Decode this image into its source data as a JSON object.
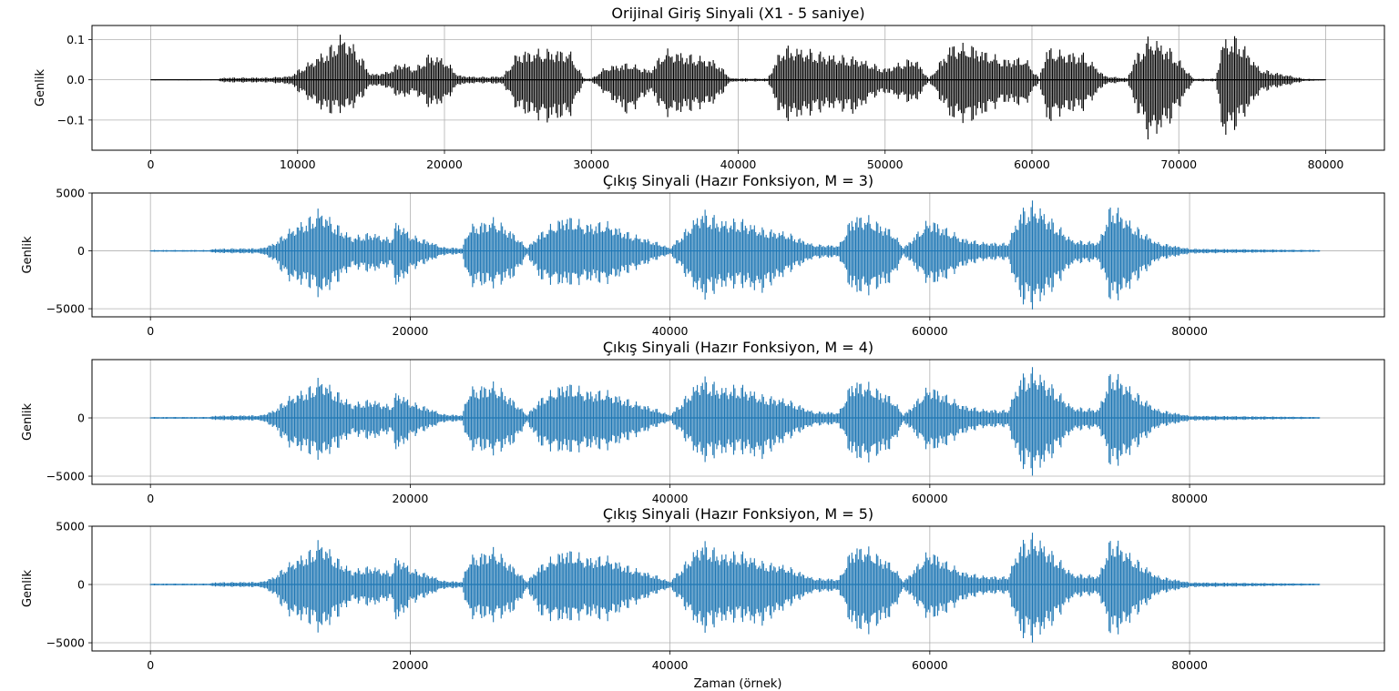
{
  "figure": {
    "xlabel": "Zaman (örnek)"
  },
  "chart_data": [
    {
      "type": "line",
      "title": "Orijinal Giriş Sinyali (X1 - 5 saniye)",
      "ylabel": "Genlik",
      "xlabel": "",
      "color": "#000000",
      "xlim": [
        -4000,
        84000
      ],
      "ylim": [
        -0.175,
        0.135
      ],
      "xticks": [
        0,
        10000,
        20000,
        30000,
        40000,
        50000,
        60000,
        70000,
        80000
      ],
      "xtick_labels": [
        "0",
        "10000",
        "20000",
        "30000",
        "40000",
        "50000",
        "60000",
        "70000",
        "80000"
      ],
      "yticks": [
        0.1,
        0.0,
        -0.1
      ],
      "ytick_labels": [
        "0.1",
        "0.0",
        "−0.1"
      ],
      "grid": true,
      "envelope": {
        "x": [
          0,
          4500,
          5000,
          8000,
          9500,
          10000,
          12000,
          13000,
          14000,
          15000,
          16000,
          17000,
          18000,
          19000,
          20000,
          21000,
          22000,
          23000,
          24000,
          25000,
          27000,
          28500,
          29500,
          30000,
          31000,
          32500,
          34000,
          35000,
          37000,
          38500,
          39500,
          42000,
          43000,
          45000,
          46500,
          48000,
          49000,
          50000,
          52000,
          53000,
          54500,
          56000,
          58000,
          59500,
          60500,
          61000,
          62000,
          63500,
          65000,
          66500,
          67000,
          68000,
          69500,
          71000,
          72500,
          73000,
          74000,
          75500,
          76500,
          77500,
          78500,
          80000
        ],
        "pos": [
          0.001,
          0.001,
          0.006,
          0.006,
          0.01,
          0.025,
          0.08,
          0.12,
          0.085,
          0.015,
          0.02,
          0.048,
          0.03,
          0.07,
          0.055,
          0.012,
          0.008,
          0.008,
          0.01,
          0.075,
          0.08,
          0.078,
          0.004,
          0.003,
          0.035,
          0.045,
          0.025,
          0.08,
          0.065,
          0.05,
          0.004,
          0.003,
          0.09,
          0.078,
          0.065,
          0.06,
          0.045,
          0.03,
          0.06,
          0.003,
          0.095,
          0.09,
          0.055,
          0.06,
          0.004,
          0.085,
          0.075,
          0.07,
          0.01,
          0.004,
          0.06,
          0.115,
          0.08,
          0.003,
          0.003,
          0.105,
          0.115,
          0.03,
          0.02,
          0.012,
          0.003,
          0.001
        ],
        "neg": [
          -0.001,
          -0.001,
          -0.007,
          -0.007,
          -0.012,
          -0.03,
          -0.09,
          -0.085,
          -0.07,
          -0.015,
          -0.02,
          -0.05,
          -0.035,
          -0.075,
          -0.06,
          -0.013,
          -0.009,
          -0.009,
          -0.012,
          -0.085,
          -0.11,
          -0.1,
          -0.005,
          -0.004,
          -0.04,
          -0.095,
          -0.03,
          -0.095,
          -0.08,
          -0.06,
          -0.005,
          -0.004,
          -0.11,
          -0.09,
          -0.075,
          -0.09,
          -0.05,
          -0.035,
          -0.065,
          -0.004,
          -0.105,
          -0.11,
          -0.06,
          -0.07,
          -0.005,
          -0.115,
          -0.09,
          -0.08,
          -0.012,
          -0.005,
          -0.07,
          -0.16,
          -0.11,
          -0.004,
          -0.004,
          -0.15,
          -0.125,
          -0.035,
          -0.022,
          -0.014,
          -0.004,
          -0.001
        ]
      }
    },
    {
      "type": "line",
      "title": "Çıkış Sinyali (Hazır Fonksiyon, M = 3)",
      "ylabel": "Genlik",
      "xlabel": "",
      "color": "#1f77b4",
      "xlim": [
        -4500,
        95000
      ],
      "ylim": [
        -5700,
        5000
      ],
      "xticks": [
        0,
        20000,
        40000,
        60000,
        80000
      ],
      "xtick_labels": [
        "0",
        "20000",
        "40000",
        "60000",
        "80000"
      ],
      "yticks": [
        5000,
        0,
        -5000
      ],
      "ytick_labels": [
        "5000",
        "0",
        "−5000"
      ],
      "grid": true,
      "envelope": {
        "x": [
          0,
          4500,
          5000,
          8500,
          9500,
          10500,
          12500,
          13000,
          14500,
          15500,
          17000,
          18500,
          19000,
          20000,
          21500,
          22500,
          24000,
          24500,
          26500,
          28000,
          29000,
          30000,
          32000,
          33500,
          35000,
          37000,
          39000,
          40000,
          42500,
          44000,
          45500,
          47000,
          49000,
          51000,
          53000,
          54000,
          55000,
          57000,
          58000,
          60000,
          61000,
          62500,
          64000,
          66000,
          67000,
          68000,
          69500,
          71000,
          73000,
          74000,
          75500,
          77500,
          80000,
          90000
        ],
        "pos": [
          80,
          80,
          200,
          250,
          700,
          1800,
          3300,
          3900,
          2300,
          1300,
          1700,
          1100,
          2900,
          1500,
          900,
          350,
          250,
          2300,
          3000,
          1600,
          300,
          1700,
          3300,
          2500,
          2700,
          1600,
          800,
          250,
          3800,
          2800,
          2900,
          2100,
          1700,
          600,
          500,
          3200,
          3300,
          2000,
          300,
          3000,
          2300,
          1200,
          800,
          700,
          3800,
          4500,
          2800,
          1000,
          800,
          4500,
          2600,
          800,
          200,
          80
        ],
        "neg": [
          -80,
          -80,
          -200,
          -250,
          -900,
          -2600,
          -3500,
          -4300,
          -2800,
          -1500,
          -2000,
          -1300,
          -3500,
          -1800,
          -1000,
          -400,
          -300,
          -3200,
          -3300,
          -2500,
          -400,
          -2700,
          -3300,
          -2800,
          -3000,
          -1900,
          -800,
          -300,
          -4500,
          -3400,
          -3300,
          -3800,
          -2100,
          -700,
          -600,
          -3900,
          -4000,
          -3000,
          -400,
          -3200,
          -2800,
          -1500,
          -900,
          -800,
          -4800,
          -5200,
          -3600,
          -1200,
          -900,
          -5000,
          -3300,
          -900,
          -250,
          -80
        ]
      }
    },
    {
      "type": "line",
      "title": "Çıkış Sinyali (Hazır Fonksiyon, M = 4)",
      "ylabel": "Genlik",
      "xlabel": "",
      "color": "#1f77b4",
      "xlim": [
        -4500,
        95000
      ],
      "ylim": [
        -5700,
        5000
      ],
      "xticks": [
        0,
        20000,
        40000,
        60000,
        80000
      ],
      "xtick_labels": [
        "0",
        "20000",
        "40000",
        "60000",
        "80000"
      ],
      "yticks": [
        0,
        -5000
      ],
      "ytick_labels": [
        "0",
        "−5000"
      ],
      "grid": true,
      "envelope": {
        "x": [
          0,
          4500,
          5000,
          8500,
          9500,
          10500,
          12500,
          13000,
          14500,
          15500,
          17000,
          18500,
          19000,
          20000,
          21500,
          22500,
          24000,
          24500,
          26500,
          28000,
          29000,
          30000,
          32000,
          33500,
          35000,
          37000,
          39000,
          40000,
          42500,
          44000,
          45500,
          47000,
          49000,
          51000,
          53000,
          54000,
          55000,
          57000,
          58000,
          60000,
          61000,
          62500,
          64000,
          66000,
          67000,
          68000,
          69500,
          71000,
          73000,
          74000,
          75500,
          77500,
          80000,
          90000
        ],
        "pos": [
          80,
          80,
          200,
          250,
          700,
          1800,
          3000,
          3700,
          2300,
          1300,
          1700,
          1100,
          2500,
          1500,
          900,
          350,
          250,
          2700,
          3200,
          1600,
          300,
          1800,
          3300,
          2500,
          2500,
          1600,
          800,
          250,
          3800,
          2800,
          3000,
          2100,
          1700,
          600,
          500,
          3400,
          3300,
          2000,
          300,
          3000,
          2300,
          1200,
          800,
          700,
          3900,
          4500,
          2900,
          1000,
          800,
          4500,
          2700,
          800,
          200,
          80
        ],
        "neg": [
          -80,
          -80,
          -200,
          -250,
          -900,
          -2500,
          -3400,
          -3800,
          -2700,
          -1500,
          -2000,
          -1300,
          -3200,
          -1800,
          -1000,
          -400,
          -300,
          -2800,
          -3300,
          -2400,
          -400,
          -2600,
          -3300,
          -2800,
          -2900,
          -1900,
          -800,
          -300,
          -4000,
          -3300,
          -3200,
          -3700,
          -2000,
          -700,
          -600,
          -3700,
          -4000,
          -2900,
          -400,
          -3100,
          -2700,
          -1500,
          -900,
          -800,
          -4500,
          -5100,
          -3500,
          -1200,
          -900,
          -4800,
          -3200,
          -900,
          -250,
          -80
        ]
      }
    },
    {
      "type": "line",
      "title": "Çıkış Sinyali (Hazır Fonksiyon, M = 5)",
      "ylabel": "Genlik",
      "xlabel": "Zaman (örnek)",
      "color": "#1f77b4",
      "xlim": [
        -4500,
        95000
      ],
      "ylim": [
        -5700,
        5000
      ],
      "xticks": [
        0,
        20000,
        40000,
        60000,
        80000
      ],
      "xtick_labels": [
        "0",
        "20000",
        "40000",
        "60000",
        "80000"
      ],
      "yticks": [
        5000,
        0,
        -5000
      ],
      "ytick_labels": [
        "5000",
        "0",
        "−5000"
      ],
      "grid": true,
      "envelope": {
        "x": [
          0,
          4500,
          5000,
          8500,
          9500,
          10500,
          12500,
          13000,
          14500,
          15500,
          17000,
          18500,
          19000,
          20000,
          21500,
          22500,
          24000,
          24500,
          26500,
          28000,
          29000,
          30000,
          32000,
          33500,
          35000,
          37000,
          39000,
          40000,
          42500,
          44000,
          45500,
          47000,
          49000,
          51000,
          53000,
          54000,
          55000,
          57000,
          58000,
          60000,
          61000,
          62500,
          64000,
          66000,
          67000,
          68000,
          69500,
          71000,
          73000,
          74000,
          75500,
          77500,
          80000,
          90000
        ],
        "pos": [
          80,
          80,
          200,
          250,
          700,
          1800,
          3300,
          4100,
          2300,
          1300,
          1700,
          1100,
          2700,
          1500,
          900,
          350,
          250,
          2500,
          3300,
          1600,
          300,
          1800,
          3300,
          2500,
          2600,
          1600,
          800,
          250,
          4000,
          2800,
          3000,
          2100,
          1700,
          600,
          500,
          3400,
          3500,
          2000,
          300,
          3200,
          2300,
          1200,
          800,
          700,
          3900,
          4600,
          2900,
          1000,
          800,
          4500,
          2700,
          800,
          200,
          80
        ],
        "neg": [
          -80,
          -80,
          -200,
          -250,
          -900,
          -2700,
          -3700,
          -4400,
          -2900,
          -1500,
          -2000,
          -1300,
          -3600,
          -1800,
          -1000,
          -400,
          -300,
          -3000,
          -3300,
          -2500,
          -400,
          -2900,
          -3500,
          -2900,
          -3300,
          -2000,
          -800,
          -300,
          -4400,
          -3400,
          -3300,
          -3700,
          -2100,
          -700,
          -600,
          -4000,
          -4500,
          -3000,
          -400,
          -3300,
          -2800,
          -1500,
          -900,
          -800,
          -4800,
          -5100,
          -3600,
          -1200,
          -900,
          -5000,
          -3300,
          -900,
          -250,
          -80
        ]
      }
    }
  ]
}
